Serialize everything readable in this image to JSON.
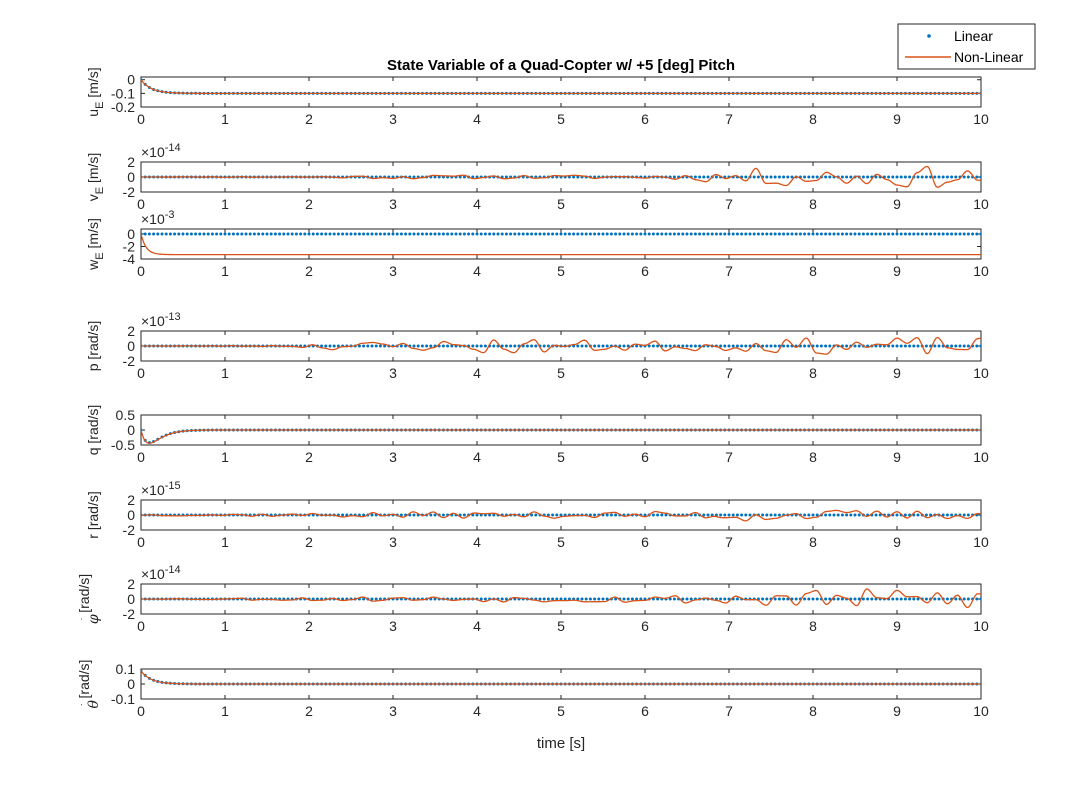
{
  "title": "State Variable of a Quad-Copter w/ +5 [deg] Pitch",
  "xlabel": "time [s]",
  "colors": {
    "linear": "#0072BD",
    "nonlinear": "#D95319",
    "axis": "#262626"
  },
  "legend": {
    "placement": "top-right-outside",
    "entries": [
      "Linear",
      "Non-Linear"
    ]
  },
  "chart_data": [
    {
      "type": "line",
      "ylabel_main": "u",
      "ylabel_sub": "E",
      "ylabel_unit": " [m/s]",
      "xlim": [
        0,
        10
      ],
      "ylim": [
        -0.2,
        0.02
      ],
      "xticks": [
        0,
        1,
        2,
        3,
        4,
        5,
        6,
        7,
        8,
        9,
        10
      ],
      "yticks": [
        0,
        -0.1,
        -0.2
      ],
      "ytick_labels": [
        "0",
        "-0.1",
        "-0.2"
      ],
      "exponent": "",
      "series": [
        {
          "name": "Linear",
          "style": "dots",
          "model": "decay",
          "start": 0,
          "final": -0.1,
          "tau": 0.12
        },
        {
          "name": "Non-Linear",
          "style": "line",
          "model": "decay",
          "start": 0,
          "final": -0.1,
          "tau": 0.12
        }
      ]
    },
    {
      "type": "line",
      "ylabel_main": "v",
      "ylabel_sub": "E",
      "ylabel_unit": " [m/s]",
      "xlim": [
        0,
        10
      ],
      "ylim": [
        -2,
        2
      ],
      "xticks": [
        0,
        1,
        2,
        3,
        4,
        5,
        6,
        7,
        8,
        9,
        10
      ],
      "yticks": [
        2,
        0,
        -2
      ],
      "ytick_labels": [
        "2",
        "0",
        "-2"
      ],
      "exponent": "-14",
      "series": [
        {
          "name": "Linear",
          "style": "dots",
          "model": "constant",
          "final": 0
        },
        {
          "name": "Non-Linear",
          "style": "line",
          "model": "noise",
          "seed": 11,
          "envelope": [
            [
              0,
              0.0
            ],
            [
              2,
              0.1
            ],
            [
              3,
              0.3
            ],
            [
              5,
              0.3
            ],
            [
              6.5,
              0.4
            ],
            [
              7,
              1.3
            ],
            [
              9,
              1.8
            ],
            [
              10,
              1.6
            ]
          ]
        }
      ]
    },
    {
      "type": "line",
      "ylabel_main": "w",
      "ylabel_sub": "E",
      "ylabel_unit": " [m/s]",
      "xlim": [
        0,
        10
      ],
      "ylim": [
        -4,
        0.8
      ],
      "xticks": [
        0,
        1,
        2,
        3,
        4,
        5,
        6,
        7,
        8,
        9,
        10
      ],
      "yticks": [
        0,
        -2,
        -4
      ],
      "ytick_labels": [
        "0",
        "-2",
        "-4"
      ],
      "exponent": "-3",
      "series": [
        {
          "name": "Linear",
          "style": "dots",
          "model": "constant",
          "final": 0
        },
        {
          "name": "Non-Linear",
          "style": "line",
          "model": "decay",
          "start": 0,
          "final": -3.3,
          "tau": 0.06
        }
      ]
    },
    {
      "type": "line",
      "ylabel_main": "p",
      "ylabel_sub": "",
      "ylabel_unit": " [rad/s]",
      "xlim": [
        0,
        10
      ],
      "ylim": [
        -2,
        2
      ],
      "xticks": [
        0,
        1,
        2,
        3,
        4,
        5,
        6,
        7,
        8,
        9,
        10
      ],
      "yticks": [
        2,
        0,
        -2
      ],
      "ytick_labels": [
        "2",
        "0",
        "-2"
      ],
      "exponent": "-13",
      "series": [
        {
          "name": "Linear",
          "style": "dots",
          "model": "constant",
          "final": 0
        },
        {
          "name": "Non-Linear",
          "style": "line",
          "model": "noise",
          "seed": 23,
          "envelope": [
            [
              0,
              0.0
            ],
            [
              1.8,
              0.1
            ],
            [
              2,
              0.6
            ],
            [
              3.5,
              0.8
            ],
            [
              3.9,
              1.5
            ],
            [
              5,
              1.0
            ],
            [
              7,
              0.8
            ],
            [
              8,
              1.3
            ],
            [
              10,
              1.5
            ]
          ]
        }
      ]
    },
    {
      "type": "line",
      "ylabel_main": "q",
      "ylabel_sub": "",
      "ylabel_unit": " [rad/s]",
      "xlim": [
        0,
        10
      ],
      "ylim": [
        -0.5,
        0.5
      ],
      "xticks": [
        0,
        1,
        2,
        3,
        4,
        5,
        6,
        7,
        8,
        9,
        10
      ],
      "yticks": [
        0.5,
        0,
        -0.5
      ],
      "ytick_labels": [
        "0.5",
        "0",
        "-0.5"
      ],
      "exponent": "",
      "series": [
        {
          "name": "Linear",
          "style": "dots",
          "model": "pulse",
          "amp": -0.42,
          "tau": 0.1
        },
        {
          "name": "Non-Linear",
          "style": "line",
          "model": "pulse",
          "amp": -0.44,
          "tau": 0.1
        }
      ]
    },
    {
      "type": "line",
      "ylabel_main": "r",
      "ylabel_sub": "",
      "ylabel_unit": " [rad/s]",
      "xlim": [
        0,
        10
      ],
      "ylim": [
        -2,
        2
      ],
      "xticks": [
        0,
        1,
        2,
        3,
        4,
        5,
        6,
        7,
        8,
        9,
        10
      ],
      "yticks": [
        2,
        0,
        -2
      ],
      "ytick_labels": [
        "2",
        "0",
        "-2"
      ],
      "exponent": "-15",
      "series": [
        {
          "name": "Linear",
          "style": "dots",
          "model": "constant",
          "final": 0
        },
        {
          "name": "Non-Linear",
          "style": "line",
          "model": "noise",
          "seed": 37,
          "envelope": [
            [
              0,
              0.1
            ],
            [
              2,
              0.3
            ],
            [
              3,
              0.5
            ],
            [
              5,
              0.5
            ],
            [
              6.8,
              0.6
            ],
            [
              6.9,
              1.4
            ],
            [
              7.5,
              0.9
            ],
            [
              9,
              0.7
            ],
            [
              10,
              0.6
            ]
          ]
        }
      ]
    },
    {
      "type": "line",
      "ylabel_main": "φ",
      "ylabel_sub": "",
      "ylabel_unit": " [rad/s]",
      "ylabel_dot": true,
      "xlim": [
        0,
        10
      ],
      "ylim": [
        -2,
        2
      ],
      "xticks": [
        0,
        1,
        2,
        3,
        4,
        5,
        6,
        7,
        8,
        9,
        10
      ],
      "yticks": [
        2,
        0,
        -2
      ],
      "ytick_labels": [
        "2",
        "0",
        "-2"
      ],
      "exponent": "-14",
      "series": [
        {
          "name": "Linear",
          "style": "dots",
          "model": "constant",
          "final": 0
        },
        {
          "name": "Non-Linear",
          "style": "line",
          "model": "noise",
          "seed": 53,
          "envelope": [
            [
              0,
              0.0
            ],
            [
              2,
              0.3
            ],
            [
              3,
              0.4
            ],
            [
              5,
              0.5
            ],
            [
              6.5,
              0.7
            ],
            [
              7,
              1.2
            ],
            [
              8.5,
              1.6
            ],
            [
              10,
              1.6
            ]
          ]
        }
      ]
    },
    {
      "type": "line",
      "ylabel_main": "θ",
      "ylabel_sub": "",
      "ylabel_unit": " [rad/s]",
      "ylabel_dot": true,
      "xlim": [
        0,
        10
      ],
      "ylim": [
        -0.1,
        0.1
      ],
      "xticks": [
        0,
        1,
        2,
        3,
        4,
        5,
        6,
        7,
        8,
        9,
        10
      ],
      "yticks": [
        0.1,
        0,
        -0.1
      ],
      "ytick_labels": [
        "0.1",
        "0",
        "-0.1"
      ],
      "exponent": "",
      "series": [
        {
          "name": "Linear",
          "style": "dots",
          "model": "decay",
          "start": 0.087,
          "final": 0,
          "tau": 0.12
        },
        {
          "name": "Non-Linear",
          "style": "line",
          "model": "decay",
          "start": 0.087,
          "final": 0,
          "tau": 0.12
        }
      ]
    }
  ]
}
